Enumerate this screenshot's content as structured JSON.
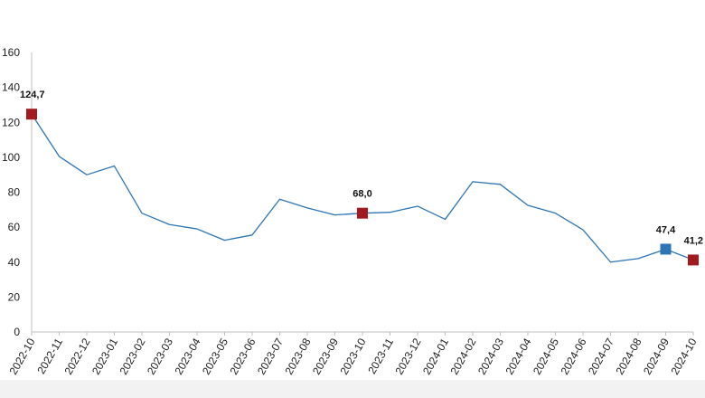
{
  "chart_data": {
    "type": "line",
    "categories": [
      "2022-10",
      "2022-11",
      "2022-12",
      "2023-01",
      "2023-02",
      "2023-03",
      "2023-04",
      "2023-05",
      "2023-06",
      "2023-07",
      "2023-08",
      "2023-09",
      "2023-10",
      "2023-11",
      "2023-12",
      "2024-01",
      "2024-02",
      "2024-03",
      "2024-04",
      "2024-05",
      "2024-06",
      "2024-07",
      "2024-08",
      "2024-09",
      "2024-10"
    ],
    "series": [
      {
        "values": [
          124.7,
          100.5,
          90.0,
          95.0,
          68.0,
          61.5,
          59.0,
          52.5,
          55.5,
          76.0,
          71.0,
          67.0,
          68.0,
          68.5,
          72.0,
          64.5,
          86.0,
          84.5,
          72.5,
          68.0,
          58.5,
          40.0,
          42.0,
          47.4,
          41.2
        ],
        "color": "#2e75b6"
      }
    ],
    "highlighted_points": [
      {
        "index": 0,
        "label": "124,7",
        "color": "#a31a1e"
      },
      {
        "index": 12,
        "label": "68,0",
        "color": "#a31a1e"
      },
      {
        "index": 23,
        "label": "47,4",
        "color": "#2e75b6"
      },
      {
        "index": 24,
        "label": "41,2",
        "color": "#a31a1e"
      }
    ],
    "ylim": [
      0,
      160
    ],
    "yticks": [
      0,
      20,
      40,
      60,
      80,
      100,
      120,
      140,
      160
    ],
    "title": "",
    "xlabel": "",
    "ylabel": "",
    "grid": false,
    "legend": "none"
  }
}
